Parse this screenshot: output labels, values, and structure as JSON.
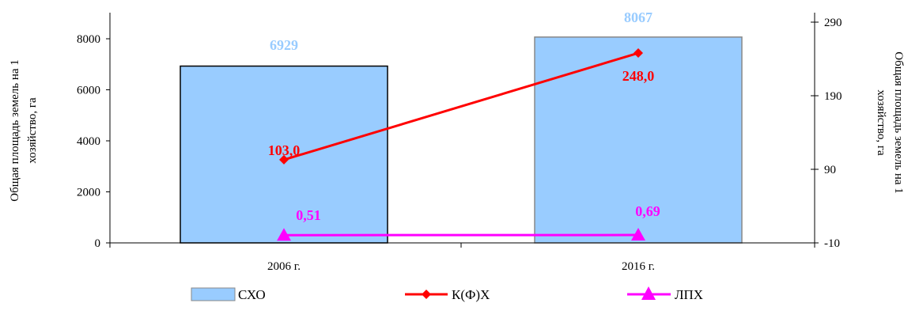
{
  "chart_data": {
    "type": "bar",
    "categories": [
      "2006 г.",
      "2016 г."
    ],
    "left_axis": {
      "label": "Общая площадь земель на 1 хозяйство, га",
      "ylim": [
        0,
        9000
      ],
      "ticks": [
        0,
        2000,
        4000,
        6000,
        8000
      ],
      "tick_labels": [
        "0",
        "2000",
        "4000",
        "6000",
        "8000"
      ]
    },
    "right_axis": {
      "label": "Общая площадь земель на 1 хозяйство, га",
      "ylim": [
        -10,
        300
      ],
      "ticks": [
        -10,
        90,
        190,
        290
      ],
      "tick_labels": [
        "-10",
        "90",
        "190",
        "290"
      ]
    },
    "series": [
      {
        "name": "СХО",
        "kind": "bar",
        "axis": "left",
        "values": [
          6929,
          8067
        ],
        "labels": [
          "6929",
          "8067"
        ],
        "color": "#99ccff",
        "label_color": "#99ccff"
      },
      {
        "name": "К(Ф)Х",
        "kind": "line",
        "marker": "diamond",
        "axis": "right",
        "values": [
          103.0,
          248.0
        ],
        "labels": [
          "103,0",
          "248,0"
        ],
        "color": "#ff0000"
      },
      {
        "name": "ЛПХ",
        "kind": "line",
        "marker": "triangle",
        "axis": "right",
        "values": [
          0.51,
          0.69
        ],
        "labels": [
          "0,51",
          "0,69"
        ],
        "color": "#ff00ff"
      }
    ],
    "legend_position": "bottom",
    "grid": false
  }
}
